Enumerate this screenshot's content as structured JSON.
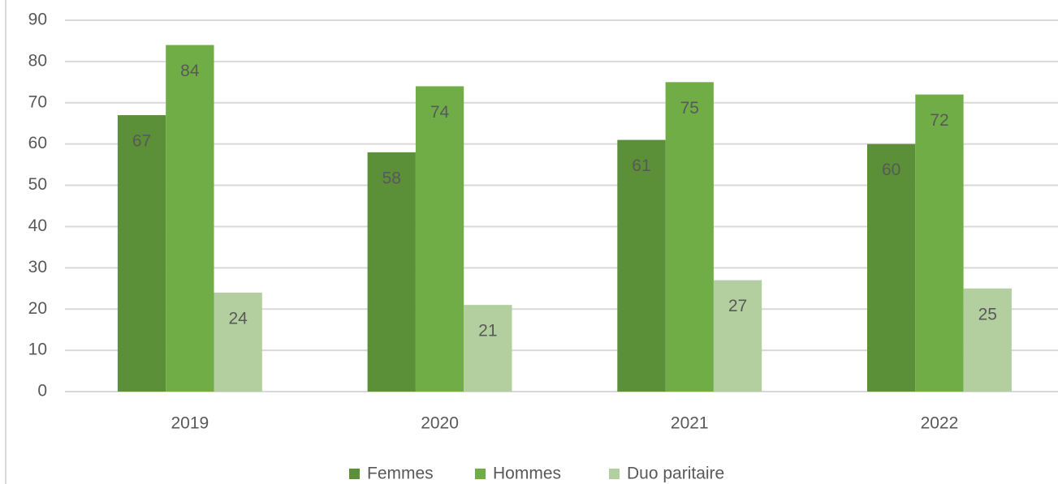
{
  "chart_data": {
    "type": "bar",
    "categories": [
      "2019",
      "2020",
      "2021",
      "2022"
    ],
    "series": [
      {
        "name": "Femmes",
        "color": "#5b8f38",
        "values": [
          67,
          58,
          61,
          60
        ]
      },
      {
        "name": "Hommes",
        "color": "#70ad47",
        "values": [
          84,
          74,
          75,
          72
        ]
      },
      {
        "name": "Duo paritaire",
        "color": "#b3cfa0",
        "values": [
          24,
          21,
          27,
          25
        ]
      }
    ],
    "ylim": [
      0,
      90
    ],
    "yticks": [
      0,
      10,
      20,
      30,
      40,
      50,
      60,
      70,
      80,
      90
    ],
    "grid": true,
    "legend": "bottom"
  }
}
